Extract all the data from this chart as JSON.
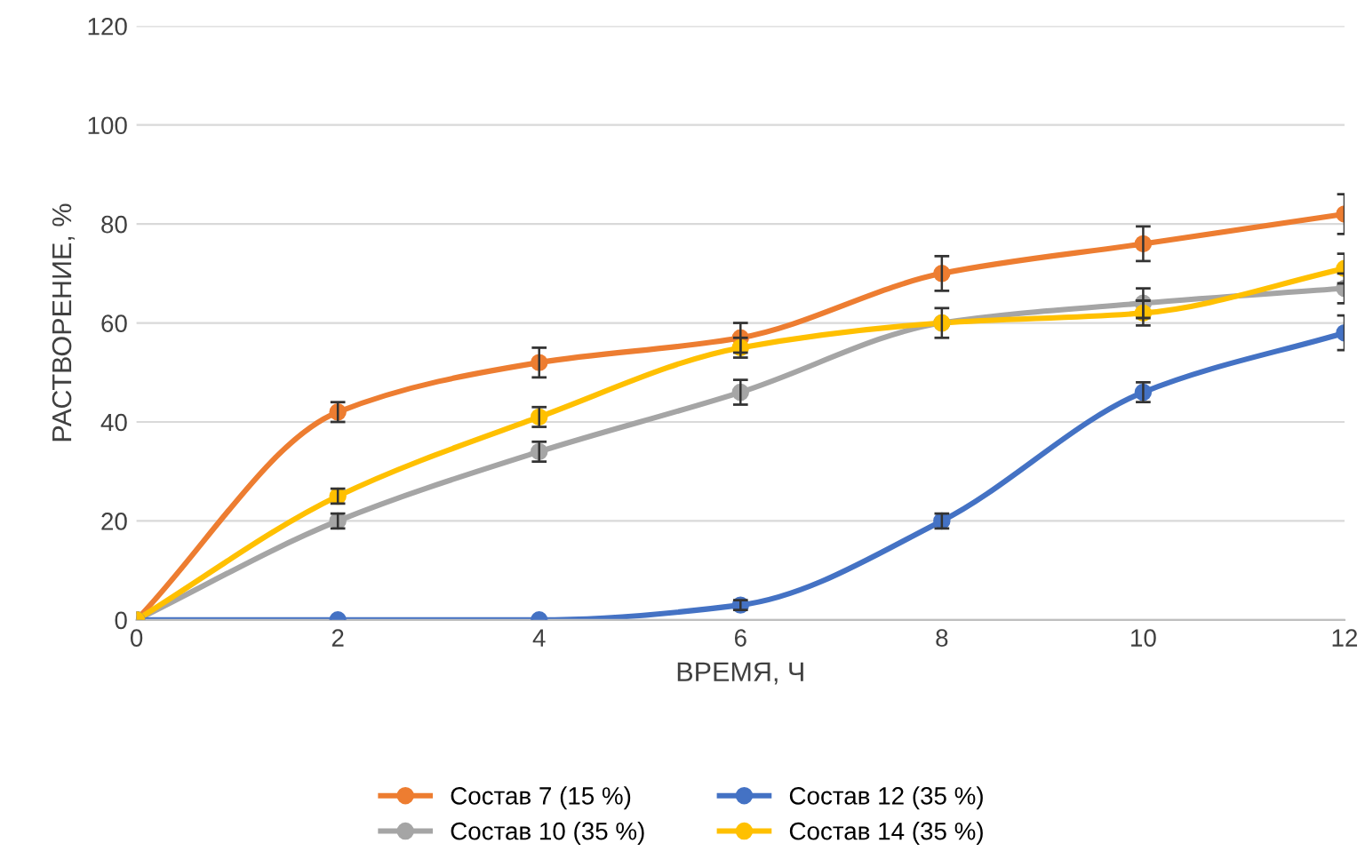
{
  "chart_data": {
    "type": "line",
    "xlabel": "ВРЕМЯ, Ч",
    "ylabel": "РАСТВОРЕНИЕ, %",
    "x": [
      0,
      2,
      4,
      6,
      8,
      10,
      12
    ],
    "xlim": [
      0,
      12
    ],
    "xticks": [
      0,
      2,
      4,
      6,
      8,
      10,
      12
    ],
    "ylim": [
      0,
      120
    ],
    "yticks": [
      0,
      20,
      40,
      60,
      80,
      100,
      120
    ],
    "grid": "y",
    "legend": "bottom",
    "marker": "circle",
    "line_style": "solid",
    "series": [
      {
        "name": "Состав 7 (15 %)",
        "color": "#ed7d31",
        "values": [
          0,
          42,
          52,
          57,
          70,
          76,
          82
        ],
        "errors": [
          null,
          2,
          3,
          3,
          3.5,
          3.5,
          4
        ]
      },
      {
        "name": "Состав 10 (35 %)",
        "color": "#a5a5a5",
        "values": [
          0,
          20,
          34,
          46,
          60,
          64,
          67
        ],
        "errors": [
          null,
          1.5,
          2,
          2.5,
          3,
          3,
          3
        ]
      },
      {
        "name": "Состав 12 (35 %)",
        "color": "#4472c4",
        "values": [
          0,
          0,
          0,
          3,
          20,
          46,
          58
        ],
        "errors": [
          null,
          null,
          null,
          1,
          1.5,
          2,
          3.5
        ]
      },
      {
        "name": "Состав 14 (35 %)",
        "color": "#ffc000",
        "values": [
          0,
          25,
          41,
          55,
          60,
          62,
          71
        ],
        "errors": [
          null,
          1.5,
          2,
          2,
          null,
          2.5,
          3
        ]
      }
    ]
  }
}
